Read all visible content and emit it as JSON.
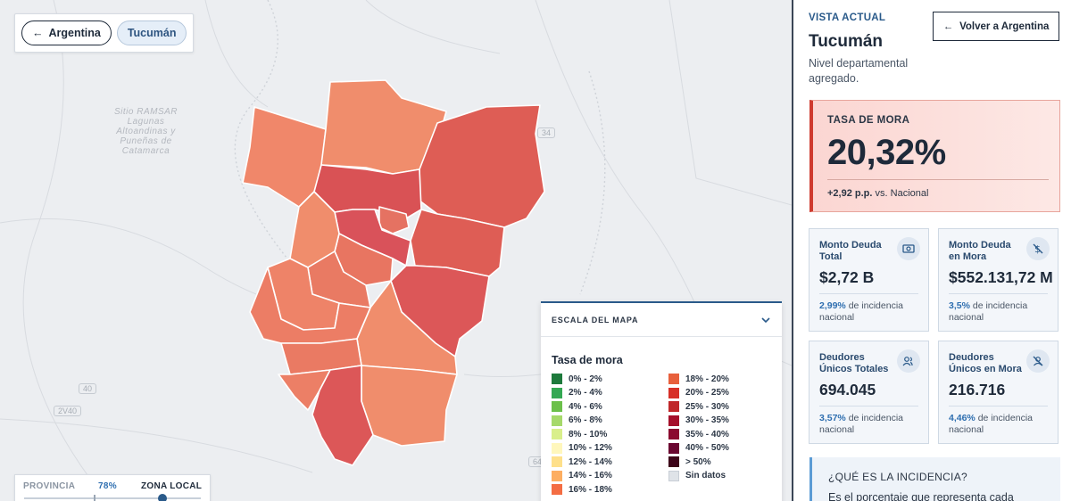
{
  "breadcrumb": {
    "back_label": "Argentina",
    "current_label": "Tucumán"
  },
  "map_labels": {
    "ramsar": [
      "Sitio RAMSAR",
      "Lagunas",
      "Altoandinas y",
      "Puneñas de",
      "Catamarca"
    ],
    "routes": [
      "40",
      "2V40",
      "34",
      "64"
    ]
  },
  "scale": {
    "header": "ESCALA DEL MAPA",
    "title": "Tasa de mora",
    "items": [
      {
        "label": "0% - 2%",
        "color": "#1e7a3c"
      },
      {
        "label": "2% - 4%",
        "color": "#34a853"
      },
      {
        "label": "4% - 6%",
        "color": "#6cc04a"
      },
      {
        "label": "6% - 8%",
        "color": "#a6d96a"
      },
      {
        "label": "8% - 10%",
        "color": "#d9ef8b"
      },
      {
        "label": "10% - 12%",
        "color": "#fff7bc"
      },
      {
        "label": "12% - 14%",
        "color": "#fee08b"
      },
      {
        "label": "14% - 16%",
        "color": "#fdae61"
      },
      {
        "label": "16% - 18%",
        "color": "#f46d43"
      },
      {
        "label": "18% - 20%",
        "color": "#e8603c"
      },
      {
        "label": "20% - 25%",
        "color": "#d73027"
      },
      {
        "label": "25% - 30%",
        "color": "#c0282a"
      },
      {
        "label": "30% - 35%",
        "color": "#a50f2a"
      },
      {
        "label": "35% - 40%",
        "color": "#8b0a2f"
      },
      {
        "label": "40% - 50%",
        "color": "#6a0630"
      },
      {
        "label": "> 50%",
        "color": "#3d0419"
      },
      {
        "label": "Sin datos",
        "color": "#dfe3e8"
      }
    ]
  },
  "slider": {
    "left_label": "PROVINCIA",
    "value": "78%",
    "right_label": "ZONA LOCAL"
  },
  "panel": {
    "eyebrow": "VISTA ACTUAL",
    "name": "Tucumán",
    "subtitle": "Nivel departamental agregado.",
    "back_button": "Volver a Argentina",
    "mora": {
      "title": "TASA DE MORA",
      "value": "20,32%",
      "delta": "+2,92 p.p.",
      "delta_suffix": "vs. Nacional"
    },
    "cards": [
      {
        "title": "Monto Deuda Total",
        "value": "$2,72 B",
        "pct": "2,99%",
        "note": "de incidencia nacional",
        "icon": "money-icon"
      },
      {
        "title": "Monto Deuda en Mora",
        "value": "$552.131,72 M",
        "pct": "3,5%",
        "note": "de incidencia nacional",
        "icon": "money-off-icon"
      },
      {
        "title": "Deudores Únicos Totales",
        "value": "694.045",
        "pct": "3,57%",
        "note": "de incidencia nacional",
        "icon": "users-icon"
      },
      {
        "title": "Deudores Únicos en Mora",
        "value": "216.716",
        "pct": "4,46%",
        "note": "de incidencia nacional",
        "icon": "user-off-icon"
      }
    ],
    "info": {
      "title": "¿QUÉ ES LA INCIDENCIA?",
      "body": "Es el porcentaje que representa cada"
    }
  }
}
